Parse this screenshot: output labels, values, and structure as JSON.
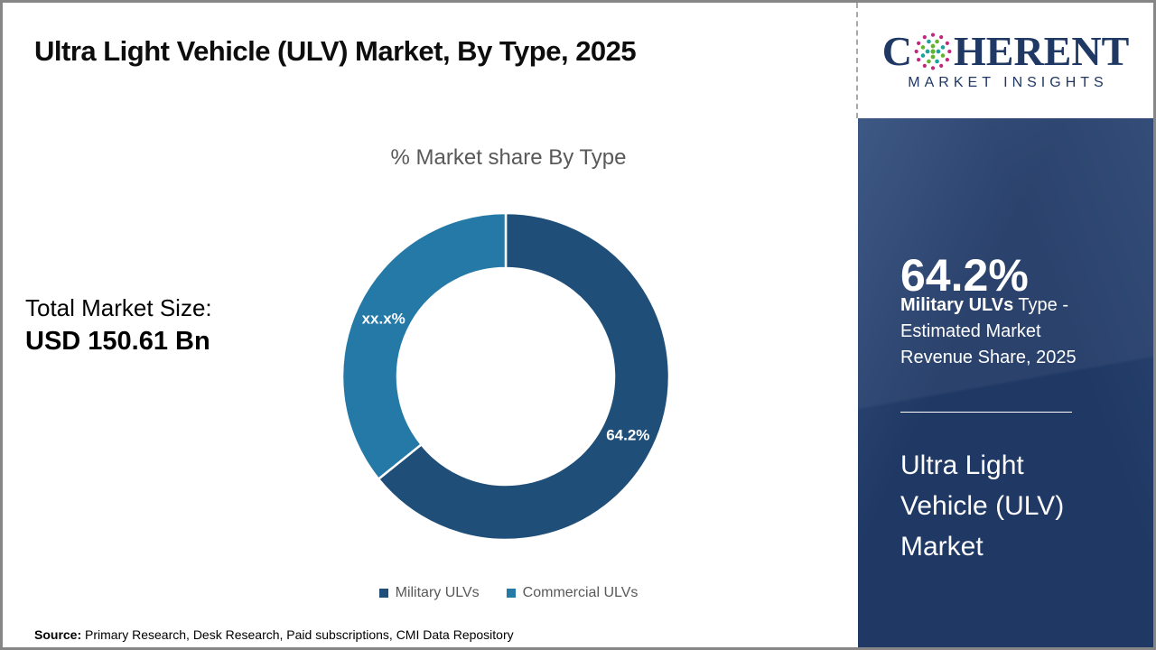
{
  "title": "Ultra Light Vehicle (ULV) Market, By Type, 2025",
  "logo": {
    "brand_first_letter": "C",
    "brand_rest": "HERENT",
    "subtitle": "MARKET INSIGHTS"
  },
  "chart_data": {
    "type": "pie",
    "donut": true,
    "title": "% Market share By Type",
    "legend_position": "bottom",
    "series": [
      {
        "name": "Military ULVs",
        "value": 64.2,
        "label": "64.2%",
        "color": "#1F4E79"
      },
      {
        "name": "Commercial ULVs",
        "value": 35.8,
        "label": "xx.x%",
        "color": "#2479A7"
      }
    ]
  },
  "total_market": {
    "label": "Total Market Size:",
    "value": "USD 150.61 Bn"
  },
  "sidebar": {
    "stat_value": "64.2%",
    "stat_label_bold": "Military ULVs",
    "stat_label_rest": " Type - Estimated Market Revenue Share, 2025",
    "market_name": "Ultra Light Vehicle (ULV) Market"
  },
  "source": {
    "label": "Source:",
    "text": " Primary Research, Desk Research, Paid subscriptions, CMI Data Repository"
  },
  "colors": {
    "navy": "#1F3864",
    "slice_dark": "#1F4E79",
    "slice_teal": "#2479A7",
    "muted_text": "#595959",
    "globe_magenta": "#C2267D",
    "globe_green": "#64B32E",
    "globe_teal": "#18A39B"
  }
}
